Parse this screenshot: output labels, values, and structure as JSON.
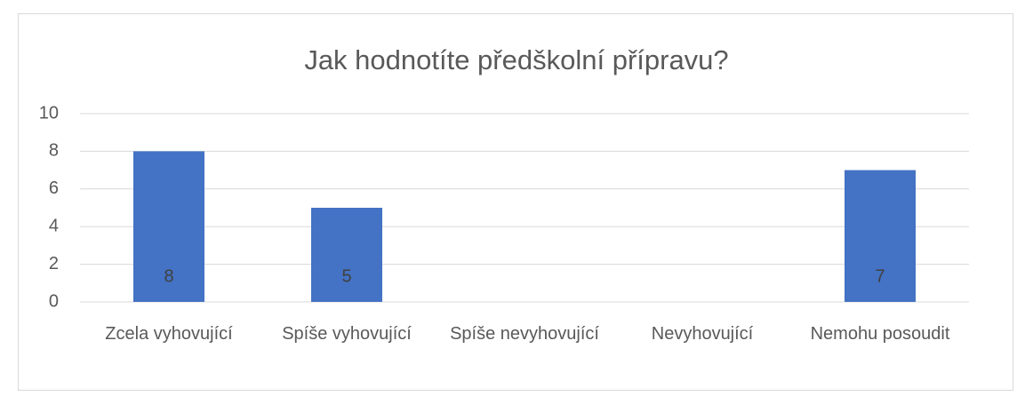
{
  "chart_data": {
    "type": "bar",
    "title": "Jak hodnotíte předškolní přípravu?",
    "categories": [
      "Zcela vyhovující",
      "Spíše vyhovující",
      "Spíše nevyhovující",
      "Nevyhovující",
      "Nemohu posoudit"
    ],
    "values": [
      8,
      5,
      0,
      0,
      7
    ],
    "color": "#4472c4",
    "ylim": [
      0,
      10
    ],
    "yticks": [
      0,
      2,
      4,
      6,
      8,
      10
    ],
    "grid": true
  }
}
